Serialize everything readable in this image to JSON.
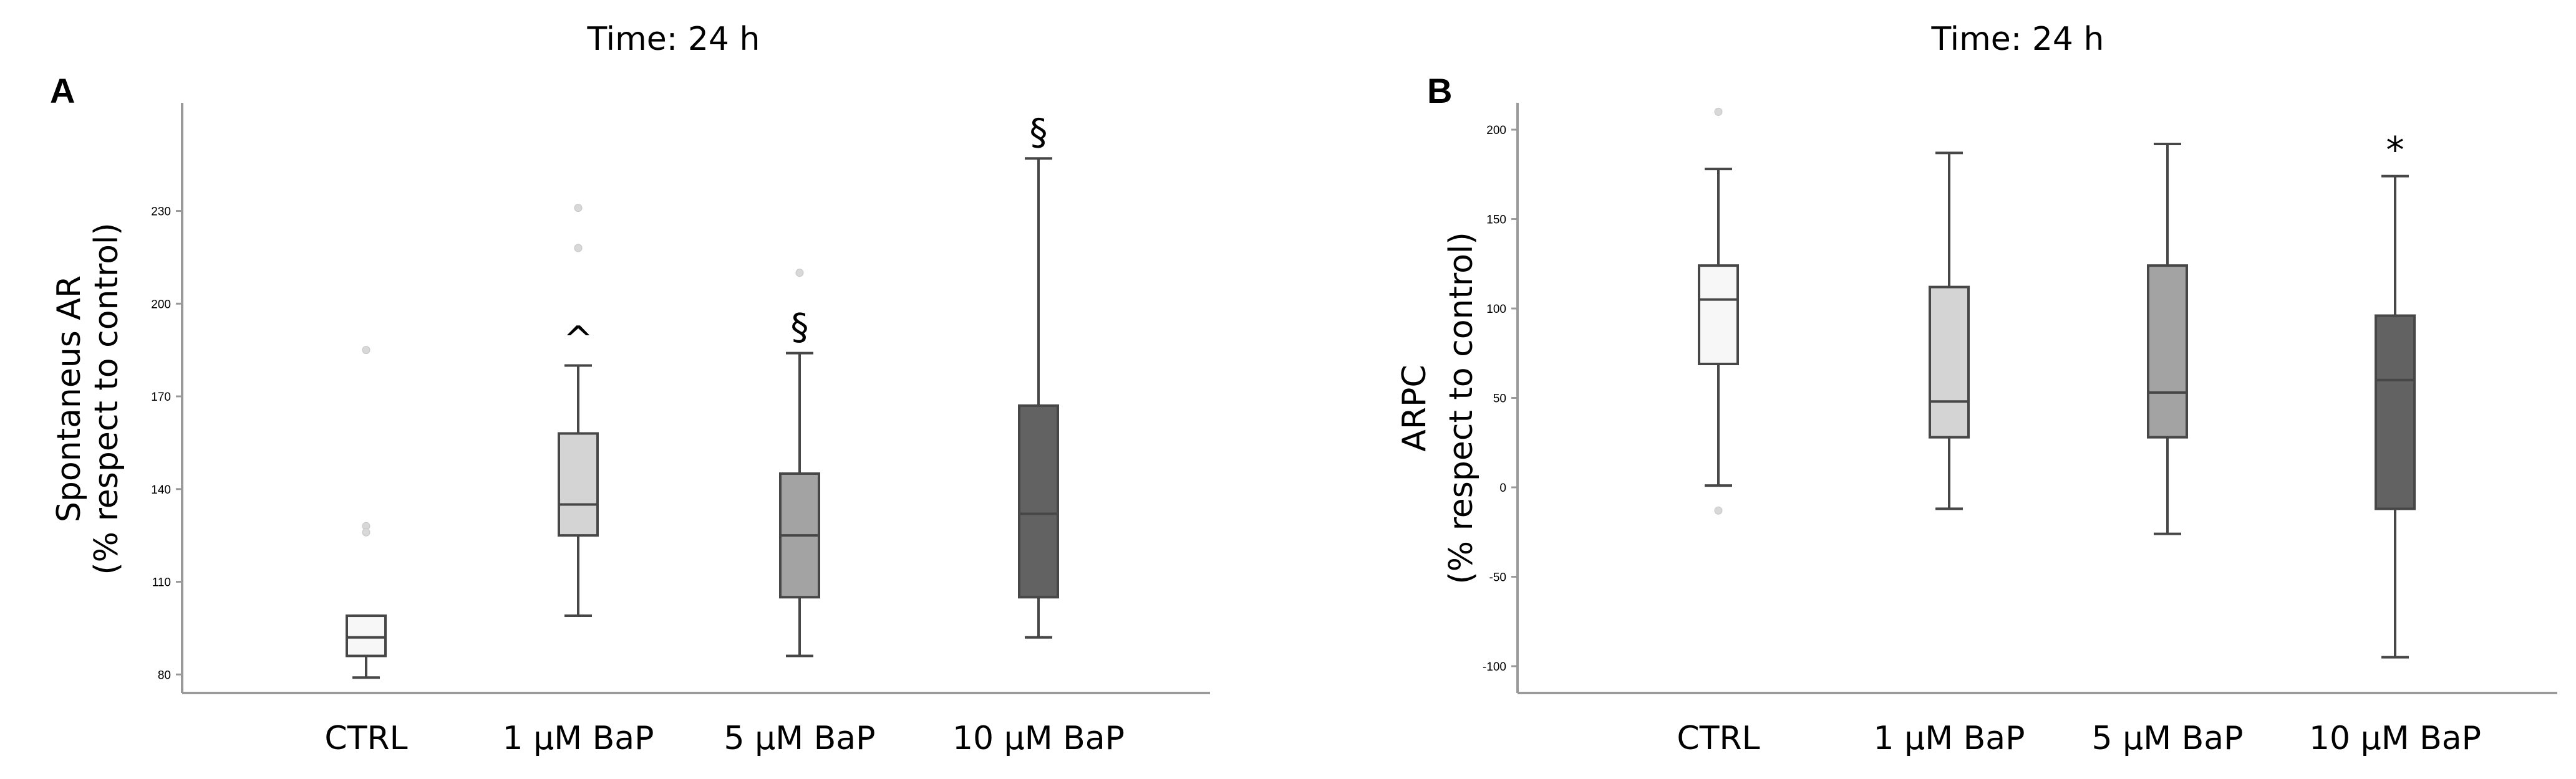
{
  "chart_data": [
    {
      "type": "box",
      "panel": "A",
      "title": "Time: 24 h",
      "ylabel": "Spontaneus AR",
      "ylabel2": "(% respect to control)",
      "ylim": [
        74,
        265
      ],
      "yticks": [
        80,
        110,
        140,
        170,
        200,
        230
      ],
      "categories": [
        "CTRL",
        "1 µM BaP",
        "5 µM BaP",
        "10 µM BaP"
      ],
      "boxes": [
        {
          "category": "CTRL",
          "min": 79,
          "q1": 86,
          "median": 92,
          "q3": 99,
          "max": 99,
          "outliers": [
            128,
            126,
            185
          ],
          "color": "#f7f7f7",
          "sig": ""
        },
        {
          "category": "1 µM BaP",
          "min": 99,
          "q1": 125,
          "median": 135,
          "q3": 158,
          "max": 180,
          "outliers": [
            218,
            231
          ],
          "color": "#d4d4d4",
          "sig": "^"
        },
        {
          "category": "5 µM BaP",
          "min": 86,
          "q1": 105,
          "median": 125,
          "q3": 145,
          "max": 184,
          "outliers": [
            210
          ],
          "color": "#a3a3a3",
          "sig": "§"
        },
        {
          "category": "10 µM BaP",
          "min": 92,
          "q1": 105,
          "median": 132,
          "q3": 167,
          "max": 247,
          "outliers": [],
          "color": "#626262",
          "sig": "§"
        }
      ]
    },
    {
      "type": "box",
      "panel": "B",
      "title": "Time: 24 h",
      "ylabel": "ARPC",
      "ylabel2": "(% respect to control)",
      "ylim": [
        -115,
        215
      ],
      "yticks": [
        -100,
        -50,
        0,
        50,
        100,
        150,
        200
      ],
      "categories": [
        "CTRL",
        "1 µM BaP",
        "5 µM BaP",
        "10 µM BaP"
      ],
      "boxes": [
        {
          "category": "CTRL",
          "min": 1,
          "q1": 69,
          "median": 105,
          "q3": 124,
          "max": 178,
          "outliers": [
            210,
            -13
          ],
          "color": "#f7f7f7",
          "sig": ""
        },
        {
          "category": "1 µM BaP",
          "min": -12,
          "q1": 28,
          "median": 48,
          "q3": 112,
          "max": 187,
          "outliers": [],
          "color": "#d4d4d4",
          "sig": ""
        },
        {
          "category": "5 µM BaP",
          "min": -26,
          "q1": 28,
          "median": 53,
          "q3": 124,
          "max": 192,
          "outliers": [],
          "color": "#a3a3a3",
          "sig": ""
        },
        {
          "category": "10 µM BaP",
          "min": -95,
          "q1": -12,
          "median": 60,
          "q3": 96,
          "max": 174,
          "outliers": [],
          "color": "#626262",
          "sig": "*"
        }
      ]
    }
  ]
}
